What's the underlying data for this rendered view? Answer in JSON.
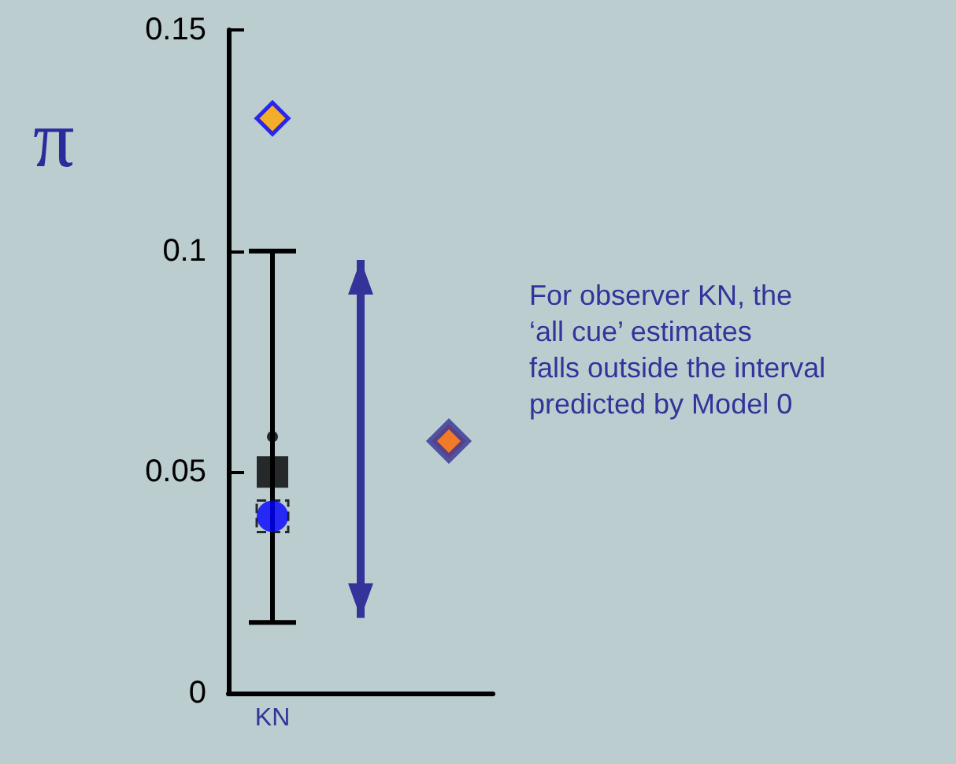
{
  "chart_data": {
    "type": "scatter",
    "ylabel": "π",
    "categories": [
      "KN",
      null,
      null
    ],
    "ylim": [
      0,
      0.15
    ],
    "yticks": [
      0,
      0.05,
      0.1,
      0.15
    ],
    "grid": false,
    "series": [
      {
        "values": [
          0.05,
          null,
          null
        ],
        "errors": [
          [
            0.016,
            0.1
          ],
          null,
          null
        ],
        "marker": "square",
        "color": "#000000"
      },
      {
        "values": [
          0.058,
          null,
          null
        ],
        "marker": "circle",
        "color": "#000000"
      },
      {
        "values": [
          0.04,
          null,
          null
        ],
        "marker": "square",
        "line_style": "dashed",
        "color": "#000000"
      },
      {
        "values": [
          0.04,
          null,
          null
        ],
        "marker": "circle",
        "color": "#0000ff"
      },
      {
        "values": [
          0.13,
          null,
          null
        ],
        "marker": "diamond",
        "color": "#ffa500"
      },
      {
        "values": [
          null,
          null,
          0.057
        ],
        "marker": "diamond",
        "color": "#ff6600"
      },
      {
        "type": "bar",
        "base": [
          null,
          0.017,
          null
        ],
        "values": [
          null,
          0.081,
          null
        ],
        "color": "#333399"
      }
    ],
    "annotations": [
      "For observer KN, the\n‘all cue’ estimates\nfalls outside the interval\npredicted by Model 0"
    ]
  }
}
